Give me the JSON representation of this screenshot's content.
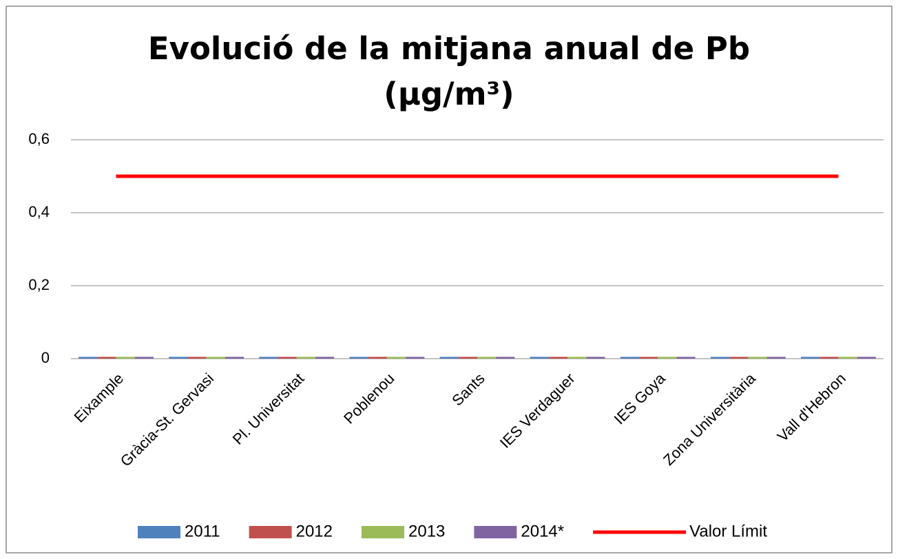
{
  "chart_data": {
    "type": "bar",
    "title": "Evolució de la mitjana anual de Pb (µg/m³)",
    "categories": [
      "Eixample",
      "Gràcia-St. Gervasi",
      "Pl. Universitat",
      "Poblenou",
      "Sants",
      "IES Verdaguer",
      "IES Goya",
      "Zona Universitària",
      "Vall d'Hebron"
    ],
    "series": [
      {
        "name": "2011",
        "color": "#4f81bd",
        "type": "bar",
        "values": [
          0.005,
          0.005,
          0.005,
          0.005,
          0.005,
          0.005,
          0.005,
          0.005,
          0.005
        ]
      },
      {
        "name": "2012",
        "color": "#c0504d",
        "type": "bar",
        "values": [
          0.005,
          0.005,
          0.005,
          0.005,
          0.005,
          0.005,
          0.005,
          0.005,
          0.005
        ]
      },
      {
        "name": "2013",
        "color": "#9bbb59",
        "type": "bar",
        "values": [
          0.005,
          0.005,
          0.005,
          0.005,
          0.005,
          0.005,
          0.005,
          0.005,
          0.005
        ]
      },
      {
        "name": "2014*",
        "color": "#8064a2",
        "type": "bar",
        "values": [
          0.005,
          0.005,
          0.005,
          0.005,
          0.005,
          0.005,
          0.005,
          0.005,
          0.005
        ]
      },
      {
        "name": "Valor Límit",
        "color": "#ff0000",
        "type": "line",
        "values": [
          0.5,
          0.5,
          0.5,
          0.5,
          0.5,
          0.5,
          0.5,
          0.5,
          0.5
        ]
      }
    ],
    "ylim": [
      0,
      0.6
    ],
    "yticks": [
      0,
      {
        "value": 0.2,
        "label": "0,2"
      },
      {
        "value": 0.4,
        "label": "0,4"
      },
      {
        "value": 0.6,
        "label": "0,6"
      }
    ],
    "grid": true,
    "legend": "bottom"
  }
}
